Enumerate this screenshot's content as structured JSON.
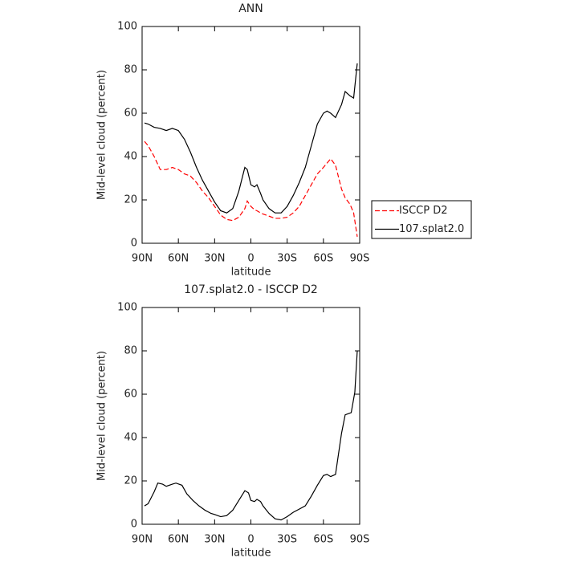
{
  "chart_data": [
    {
      "type": "line",
      "title": "ANN",
      "xlabel": "latitude",
      "ylabel": "Mid-level cloud (percent)",
      "x": [
        88,
        85,
        80,
        75,
        70,
        65,
        60,
        55,
        50,
        45,
        40,
        35,
        30,
        25,
        20,
        15,
        10,
        5,
        3,
        0,
        -3,
        -5,
        -8,
        -10,
        -15,
        -20,
        -25,
        -30,
        -35,
        -40,
        -45,
        -50,
        -55,
        -60,
        -63,
        -66,
        -70,
        -75,
        -78,
        -82,
        -85,
        -88
      ],
      "series": [
        {
          "name": "ISCCP D2",
          "color": "#ff0000",
          "dashed": true,
          "values": [
            47,
            45,
            40,
            34,
            34,
            35,
            34,
            32,
            31,
            28,
            24,
            21,
            17,
            13,
            11,
            10.5,
            12,
            16,
            19.5,
            17,
            15.5,
            15,
            14,
            13.5,
            12.5,
            11.5,
            11.5,
            12,
            14,
            17,
            22,
            27,
            32,
            35,
            37,
            39,
            36,
            25,
            21,
            18,
            14,
            3
          ]
        },
        {
          "name": "107.splat2.0",
          "color": "#000000",
          "dashed": false,
          "values": [
            55.5,
            55,
            53.5,
            53,
            52,
            53,
            52,
            48,
            42,
            35,
            29,
            24,
            19,
            15,
            14,
            16,
            24,
            35,
            34,
            27,
            26,
            27,
            23,
            20,
            16,
            14,
            14,
            17,
            22,
            28,
            35,
            45,
            55,
            60,
            61,
            60,
            58,
            64,
            70,
            68,
            67,
            83
          ]
        }
      ],
      "xlim": [
        90,
        -90
      ],
      "xticks": [
        {
          "value": 90,
          "label": "90N"
        },
        {
          "value": 60,
          "label": "60N"
        },
        {
          "value": 30,
          "label": "30N"
        },
        0,
        {
          "value": -30,
          "label": "30S"
        },
        {
          "value": -60,
          "label": "60S"
        },
        {
          "value": -90,
          "label": "90S"
        }
      ],
      "ylim": [
        0,
        100
      ],
      "yticks": [
        0,
        20,
        40,
        60,
        80,
        100
      ],
      "legend": "right"
    },
    {
      "type": "line",
      "title": "107.splat2.0 - ISCCP D2",
      "xlabel": "latitude",
      "ylabel": "Mid-level cloud (percent)",
      "x": [
        88,
        85,
        80,
        77,
        73,
        70,
        65,
        62,
        57,
        53,
        48,
        43,
        38,
        33,
        30,
        25,
        20,
        15,
        10,
        5,
        2,
        0,
        -3,
        -5,
        -8,
        -10,
        -15,
        -20,
        -25,
        -30,
        -35,
        -40,
        -45,
        -50,
        -55,
        -60,
        -63,
        -66,
        -70,
        -75,
        -78,
        -83,
        -86,
        -88
      ],
      "series": [
        {
          "color": "#000000",
          "dashed": false,
          "values": [
            8.5,
            9.5,
            15,
            19,
            18.5,
            17.5,
            18.5,
            19,
            18,
            14,
            11,
            8.5,
            6.5,
            5,
            4.5,
            3.5,
            4,
            6.5,
            11,
            15.5,
            14.5,
            11,
            10.5,
            11.5,
            10.5,
            8.5,
            5,
            2.5,
            2,
            3.5,
            5.5,
            7,
            8.5,
            13,
            18,
            22.5,
            23,
            22,
            23,
            42,
            50.5,
            51.5,
            61,
            80
          ]
        }
      ],
      "xlim": [
        90,
        -90
      ],
      "xticks": [
        {
          "value": 90,
          "label": "90N"
        },
        {
          "value": 60,
          "label": "60N"
        },
        {
          "value": 30,
          "label": "30N"
        },
        0,
        {
          "value": -30,
          "label": "30S"
        },
        {
          "value": -60,
          "label": "60S"
        },
        {
          "value": -90,
          "label": "90S"
        }
      ],
      "ylim": [
        0,
        100
      ],
      "yticks": [
        0,
        20,
        40,
        60,
        80,
        100
      ]
    }
  ]
}
